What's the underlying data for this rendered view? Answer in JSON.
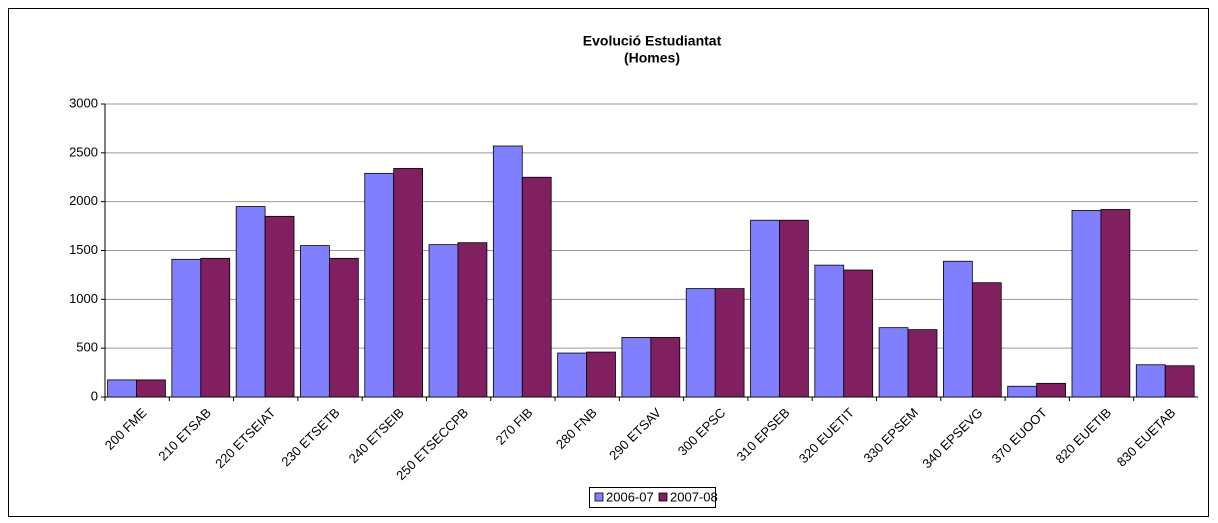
{
  "chart_data": {
    "type": "bar",
    "title": "Evolució Estudiantat",
    "subtitle": "(Homes)",
    "categories": [
      "200 FME",
      "210 ETSAB",
      "220 ETSEIAT",
      "230 ETSETB",
      "240 ETSEIB",
      "250 ETSECCPB",
      "270 FIB",
      "280 FNB",
      "290 ETSAV",
      "300 EPSC",
      "310 EPSEB",
      "320 EUETIT",
      "330 EPSEM",
      "340 EPSEVG",
      "370 EUOOT",
      "820 EUETIB",
      "830 EUETAB"
    ],
    "series": [
      {
        "name": "2006-07",
        "color": "#8080ff",
        "values": [
          175,
          1410,
          1950,
          1550,
          2290,
          1560,
          2570,
          450,
          610,
          1110,
          1810,
          1350,
          710,
          1390,
          110,
          1910,
          330
        ]
      },
      {
        "name": "2007-08",
        "color": "#802060",
        "values": [
          175,
          1420,
          1850,
          1420,
          2340,
          1580,
          2250,
          460,
          610,
          1110,
          1810,
          1300,
          690,
          1170,
          140,
          1920,
          320
        ]
      }
    ],
    "ylim": [
      0,
      3000
    ],
    "yticks": [
      0,
      500,
      1000,
      1500,
      2000,
      2500,
      3000
    ],
    "grid": true,
    "legend": "bottom"
  }
}
